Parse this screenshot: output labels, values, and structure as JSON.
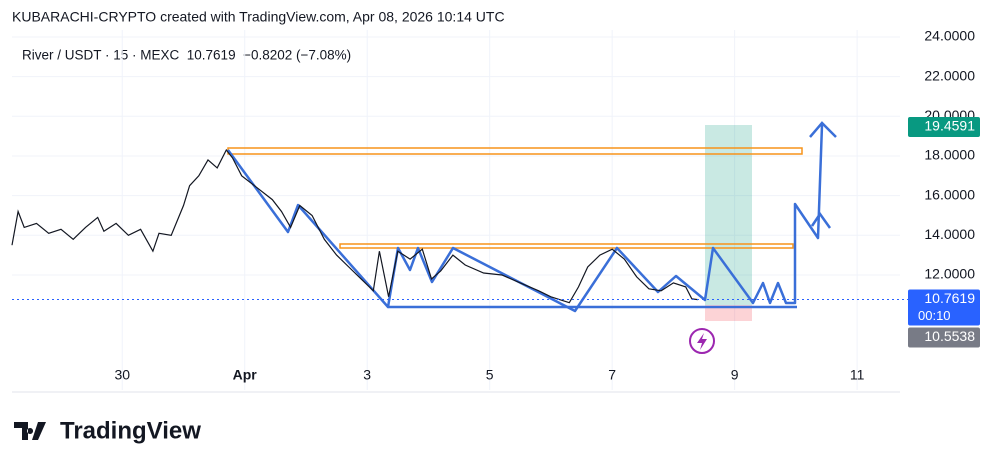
{
  "chart_data": {
    "type": "line",
    "title": "KUBARACHI-CRYPTO created with TradingView.com, Apr 08, 2026 10:14 UTC",
    "subtitle": "River / USDT · 15 · MEXC  10.7619  −0.8202 (−7.08%)",
    "series": [
      {
        "color": "#131722",
        "x": [
          -2.8,
          -2.7,
          -2.6,
          -2.4,
          -2.2,
          -2.0,
          -1.8,
          -1.6,
          -1.4,
          -1.3,
          -1.1,
          -0.9,
          -0.7,
          -0.5,
          -0.4,
          -0.2,
          0.0,
          0.1,
          0.25,
          0.4,
          0.55,
          0.7,
          0.8,
          0.95,
          1.2,
          1.45,
          1.6,
          1.75,
          1.9,
          2.1,
          2.3,
          2.5,
          2.7,
          2.9,
          3.1,
          3.2,
          3.35,
          3.5,
          3.7,
          3.9,
          4.05,
          4.2,
          4.4,
          4.6,
          4.9,
          5.2,
          5.5,
          5.8,
          6.0,
          6.3,
          6.45,
          6.6,
          6.8,
          7.0,
          7.2,
          7.4,
          7.6,
          7.8,
          8.0,
          8.2,
          8.3,
          8.4
        ],
        "values": [
          13.5,
          15.2,
          14.4,
          14.6,
          14.1,
          14.3,
          13.8,
          14.4,
          14.9,
          14.2,
          14.6,
          14.0,
          14.3,
          13.2,
          14.1,
          14.0,
          15.5,
          16.5,
          17.0,
          17.8,
          17.4,
          18.3,
          17.9,
          17.0,
          16.4,
          15.8,
          15.2,
          14.4,
          15.5,
          15.0,
          13.8,
          13.0,
          12.4,
          11.8,
          11.2,
          13.2,
          10.9,
          13.2,
          12.8,
          13.3,
          11.8,
          12.2,
          13.0,
          12.5,
          12.1,
          12.0,
          11.6,
          11.2,
          10.9,
          10.6,
          11.4,
          12.4,
          13.0,
          13.3,
          12.8,
          11.9,
          11.3,
          11.2,
          11.6,
          11.4,
          10.8,
          10.76
        ]
      }
    ],
    "xlim": [
      -2.8,
      11.7
    ],
    "xticks": [
      {
        "value": -1,
        "label": "30"
      },
      {
        "value": 1,
        "label": "Apr"
      },
      3,
      5,
      7,
      9,
      11
    ],
    "ylim": [
      6.2,
      24.35
    ],
    "yticks": [
      {
        "value": 12,
        "label": "12.0000"
      },
      {
        "value": 14,
        "label": "14.0000"
      },
      {
        "value": 16,
        "label": "16.0000"
      },
      {
        "value": 18,
        "label": "18.0000"
      },
      {
        "value": 20,
        "label": "20.0000"
      },
      {
        "value": 22,
        "label": "22.0000"
      },
      {
        "value": 24,
        "label": "24.0000"
      }
    ],
    "grid": true,
    "price_labels": [
      {
        "value": 19.4591,
        "label": "19.4591",
        "color": "#089981"
      },
      {
        "value": 10.7619,
        "label": "10.7619",
        "color": "#2962ff",
        "countdown": "00:10"
      },
      {
        "value": 10.5538,
        "label": "10.5538",
        "color": "#787b86"
      }
    ]
  },
  "footer": {
    "logo": "TradingView"
  }
}
